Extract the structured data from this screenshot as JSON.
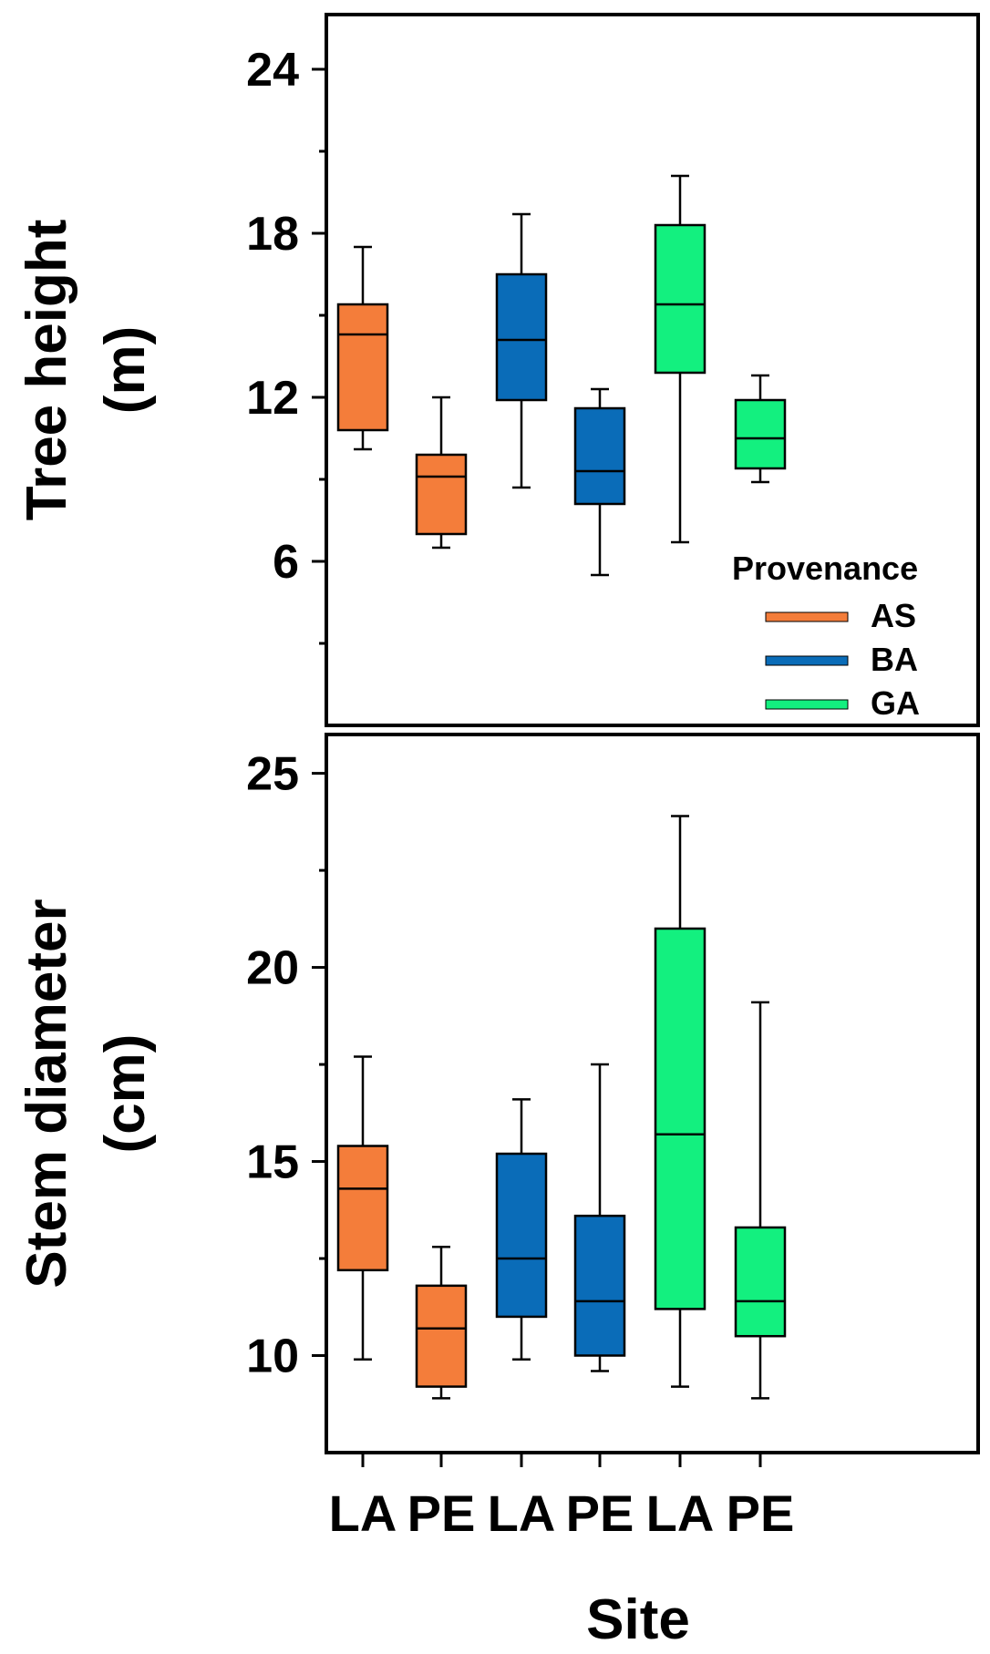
{
  "chart_data": [
    {
      "type": "box",
      "ylabel_line1": "Tree height",
      "ylabel_line2": "(m)",
      "ylim": [
        0,
        26
      ],
      "yticks": [
        6,
        12,
        18,
        24
      ],
      "minor_yticks": [
        3,
        9,
        15,
        21
      ],
      "categories": [
        "LA",
        "PE",
        "LA",
        "PE",
        "LA",
        "PE"
      ],
      "boxes": [
        {
          "site": "LA",
          "provenance": "AS",
          "min": 10.1,
          "q1": 10.8,
          "median": 14.3,
          "q3": 15.4,
          "max": 17.5
        },
        {
          "site": "PE",
          "provenance": "AS",
          "min": 6.5,
          "q1": 7.0,
          "median": 9.1,
          "q3": 9.9,
          "max": 12.0
        },
        {
          "site": "LA",
          "provenance": "BA",
          "min": 8.7,
          "q1": 11.9,
          "median": 14.1,
          "q3": 16.5,
          "max": 18.7
        },
        {
          "site": "PE",
          "provenance": "BA",
          "min": 5.5,
          "q1": 8.1,
          "median": 9.3,
          "q3": 11.6,
          "max": 12.3
        },
        {
          "site": "LA",
          "provenance": "GA",
          "min": 6.7,
          "q1": 12.9,
          "median": 15.4,
          "q3": 18.3,
          "max": 20.1
        },
        {
          "site": "PE",
          "provenance": "GA",
          "min": 8.9,
          "q1": 9.4,
          "median": 10.5,
          "q3": 11.9,
          "max": 12.8
        }
      ]
    },
    {
      "type": "box",
      "ylabel_line1": "Stem diameter",
      "ylabel_line2": "(cm)",
      "ylim": [
        7.5,
        26
      ],
      "yticks": [
        10,
        15,
        20,
        25
      ],
      "minor_yticks": [
        7.5,
        12.5,
        17.5,
        22.5
      ],
      "categories": [
        "LA",
        "PE",
        "LA",
        "PE",
        "LA",
        "PE"
      ],
      "boxes": [
        {
          "site": "LA",
          "provenance": "AS",
          "min": 9.9,
          "q1": 12.2,
          "median": 14.3,
          "q3": 15.4,
          "max": 17.7
        },
        {
          "site": "PE",
          "provenance": "AS",
          "min": 8.9,
          "q1": 9.2,
          "median": 10.7,
          "q3": 11.8,
          "max": 12.8
        },
        {
          "site": "LA",
          "provenance": "BA",
          "min": 9.9,
          "q1": 11.0,
          "median": 12.5,
          "q3": 15.2,
          "max": 16.6
        },
        {
          "site": "PE",
          "provenance": "BA",
          "min": 9.6,
          "q1": 10.0,
          "median": 11.4,
          "q3": 13.6,
          "max": 17.5
        },
        {
          "site": "LA",
          "provenance": "GA",
          "min": 9.2,
          "q1": 11.2,
          "median": 15.7,
          "q3": 21.0,
          "max": 23.9
        },
        {
          "site": "PE",
          "provenance": "GA",
          "min": 8.9,
          "q1": 10.5,
          "median": 11.4,
          "q3": 13.3,
          "max": 19.1
        }
      ]
    }
  ],
  "xlabel": "Site",
  "legend": {
    "title": "Provenance",
    "placement": "bottom-right of upper panel",
    "entries": [
      {
        "name": "AS",
        "color": "#F47D3A"
      },
      {
        "name": "BA",
        "color": "#0A6CB8"
      },
      {
        "name": "GA",
        "color": "#13F07F"
      }
    ]
  }
}
